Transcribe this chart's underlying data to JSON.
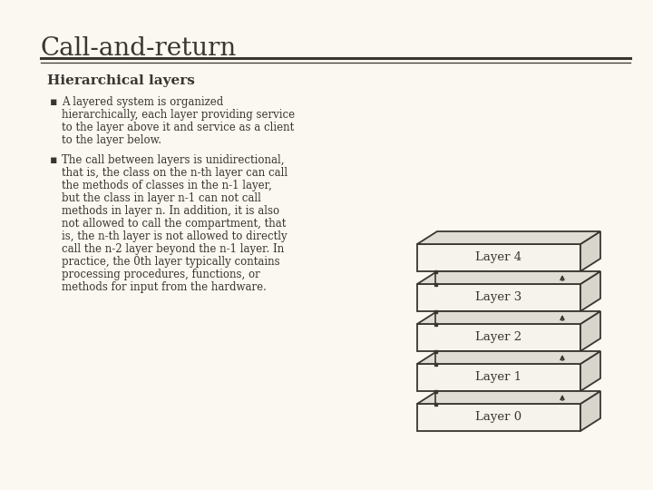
{
  "title": "Call-and-return",
  "subtitle": "Hierarchical layers",
  "bg_color": "#faf8f0",
  "title_color": "#3a3530",
  "text_color": "#3a3530",
  "bullet1_lines": [
    "A layered system is organized",
    "hierarchically, each layer providing service",
    "to the layer above it and service as a client",
    "to the layer below."
  ],
  "bullet2_lines": [
    "The call between layers is unidirectional,",
    "that is, the class on the n-th layer can call",
    "the methods of classes in the n-1 layer,",
    "but the class in layer n-1 can not call",
    "methods in layer n. In addition, it is also",
    "not allowed to call the compartment, that",
    "is, the n-th layer is not allowed to directly",
    "call the n-2 layer beyond the n-1 layer. In",
    "practice, the 0th layer typically contains",
    "processing procedures, functions, or",
    "methods for input from the hardware."
  ],
  "layers": [
    "Layer 4",
    "Layer 3",
    "Layer 2",
    "Layer 1",
    "Layer 0"
  ],
  "layer_face_color": "#f5f3ec",
  "layer_edge_color": "#3a3530",
  "layer_top_color": "#e0ddd4",
  "layer_side_color": "#d8d5cc"
}
